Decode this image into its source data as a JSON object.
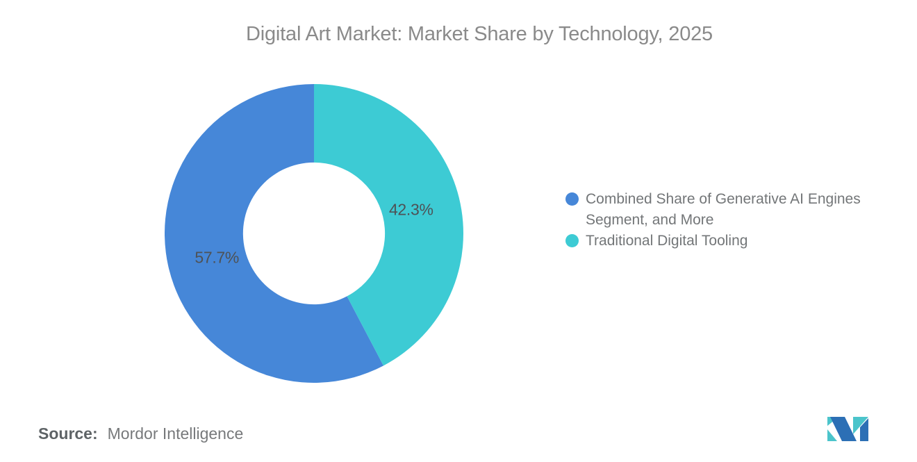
{
  "header": {
    "title": "Digital Art Market: Market Share by Technology, 2025"
  },
  "chart_data": {
    "type": "pie",
    "subtype": "donut",
    "title": "Digital Art Market: Market Share by Technology, 2025",
    "categories": [
      "Combined Share of Generative AI Engines Segment, and More",
      "Traditional Digital Tooling"
    ],
    "values": [
      57.7,
      42.3
    ],
    "data_labels": [
      "57.7%",
      "42.3%"
    ],
    "colors": [
      "#4687D8",
      "#3DCBD4"
    ],
    "start_angle_deg": 0,
    "direction": "counterclockwise",
    "inner_radius_ratio": 0.475,
    "legend_position": "right-middle",
    "grid": false
  },
  "legend": {
    "items": [
      {
        "label": "Combined Share of Generative AI Engines Segment, and More",
        "color": "#4687D8"
      },
      {
        "label": "Traditional Digital Tooling",
        "color": "#3DCBD4"
      }
    ]
  },
  "footer": {
    "source_prefix": "Source:",
    "source_text": "Mordor Intelligence"
  },
  "logo": {
    "name": "Mordor Intelligence logo",
    "blue": "#2C6FB5",
    "teal": "#4BC4CB"
  }
}
